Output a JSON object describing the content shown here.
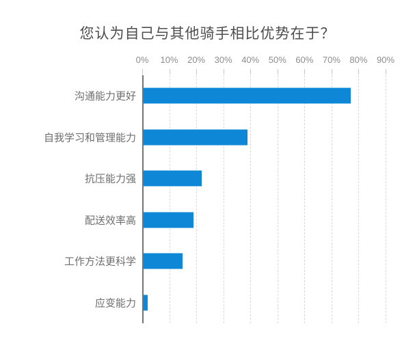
{
  "chart_data": {
    "type": "bar",
    "orientation": "horizontal",
    "title": "您认为自己与其他骑手相比优势在于？",
    "categories": [
      "沟通能力更好",
      "自我学习和管理能力",
      "抗压能力强",
      "配送效率高",
      "工作方法更科学",
      "应变能力"
    ],
    "values": [
      77,
      39,
      22,
      19,
      15,
      2
    ],
    "value_unit": "%",
    "xlim": [
      0,
      90
    ],
    "x_tick_step": 10,
    "x_tick_labels": [
      "0%",
      "10%",
      "20%",
      "30%",
      "40%",
      "50%",
      "60%",
      "70%",
      "80%",
      "90%"
    ],
    "grid": "vertical-dashed",
    "legend": "none",
    "axis_position": "top",
    "colors": {
      "bar": "#0e87d6",
      "grid": "#d9d9d9",
      "axis_line": "#737373",
      "tick_stub": "#c8c8c8",
      "title": "#4d4d4d",
      "category_label": "#6e6e6e",
      "tick_label": "#8c8c8c",
      "background": "#ffffff"
    }
  }
}
